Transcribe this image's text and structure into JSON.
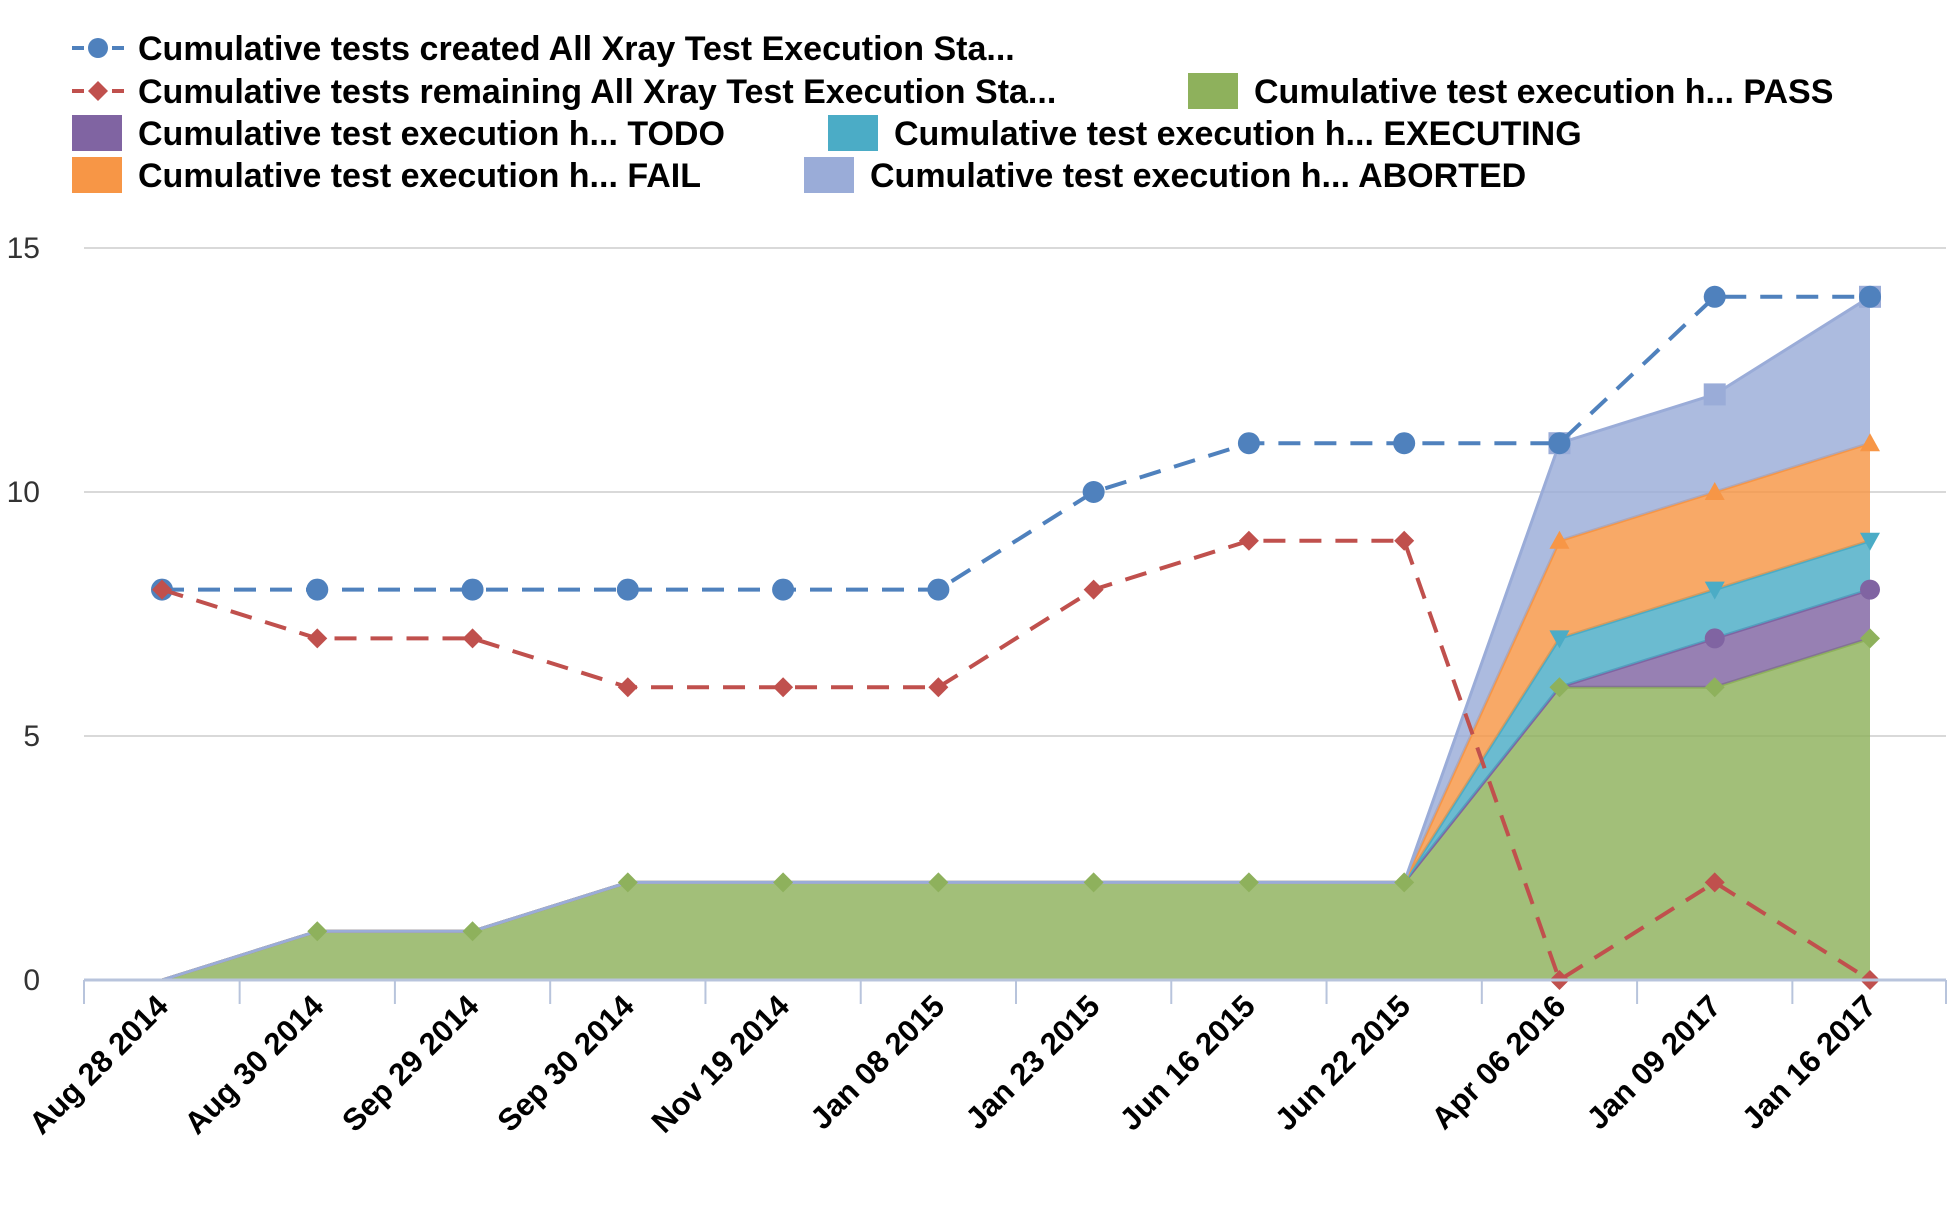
{
  "chart_data": {
    "type": "area",
    "title": "",
    "xlabel": "",
    "ylabel": "",
    "ylim": [
      0,
      15
    ],
    "yticks": [
      0,
      5,
      10,
      15
    ],
    "grid": true,
    "legend_position": "top",
    "categories": [
      "Aug 28 2014",
      "Aug 30 2014",
      "Sep 29 2014",
      "Sep 30 2014",
      "Nov 19 2014",
      "Jan 08 2015",
      "Jan 23 2015",
      "Jun 16 2015",
      "Jun 22 2015",
      "Apr 06 2016",
      "Jan 09 2017",
      "Jan 16 2017"
    ],
    "stacked_area_series": [
      {
        "name": "Cumulative test execution h... PASS",
        "color": "#8eb15c",
        "marker": "diamond",
        "values": [
          0,
          1,
          1,
          2,
          2,
          2,
          2,
          2,
          2,
          6,
          6,
          7
        ]
      },
      {
        "name": "Cumulative test execution h... TODO",
        "color": "#8064a2",
        "marker": "circle",
        "values": [
          0,
          0,
          0,
          0,
          0,
          0,
          0,
          0,
          0,
          0,
          1,
          1
        ]
      },
      {
        "name": "Cumulative test execution h... EXECUTING",
        "color": "#4bacc6",
        "marker": "triangle-down",
        "values": [
          0,
          0,
          0,
          0,
          0,
          0,
          0,
          0,
          0,
          1,
          1,
          1
        ]
      },
      {
        "name": "Cumulative test execution h... FAIL",
        "color": "#f79646",
        "marker": "triangle",
        "values": [
          0,
          0,
          0,
          0,
          0,
          0,
          0,
          0,
          0,
          2,
          2,
          2
        ]
      },
      {
        "name": "Cumulative test execution h... ABORTED",
        "color": "#9aacd8",
        "marker": "square",
        "values": [
          0,
          0,
          0,
          0,
          0,
          0,
          0,
          0,
          0,
          2,
          2,
          3
        ]
      }
    ],
    "line_series": [
      {
        "name": "Cumulative tests created All Xray Test Execution Sta...",
        "color": "#4f81bd",
        "marker": "circle",
        "dashed": true,
        "values": [
          8,
          8,
          8,
          8,
          8,
          8,
          10,
          11,
          11,
          11,
          14,
          14
        ]
      },
      {
        "name": "Cumulative tests remaining All Xray Test Execution Sta...",
        "color": "#c0504d",
        "marker": "diamond",
        "dashed": true,
        "values": [
          8,
          7,
          7,
          6,
          6,
          6,
          8,
          9,
          9,
          0,
          2,
          0
        ]
      }
    ]
  }
}
